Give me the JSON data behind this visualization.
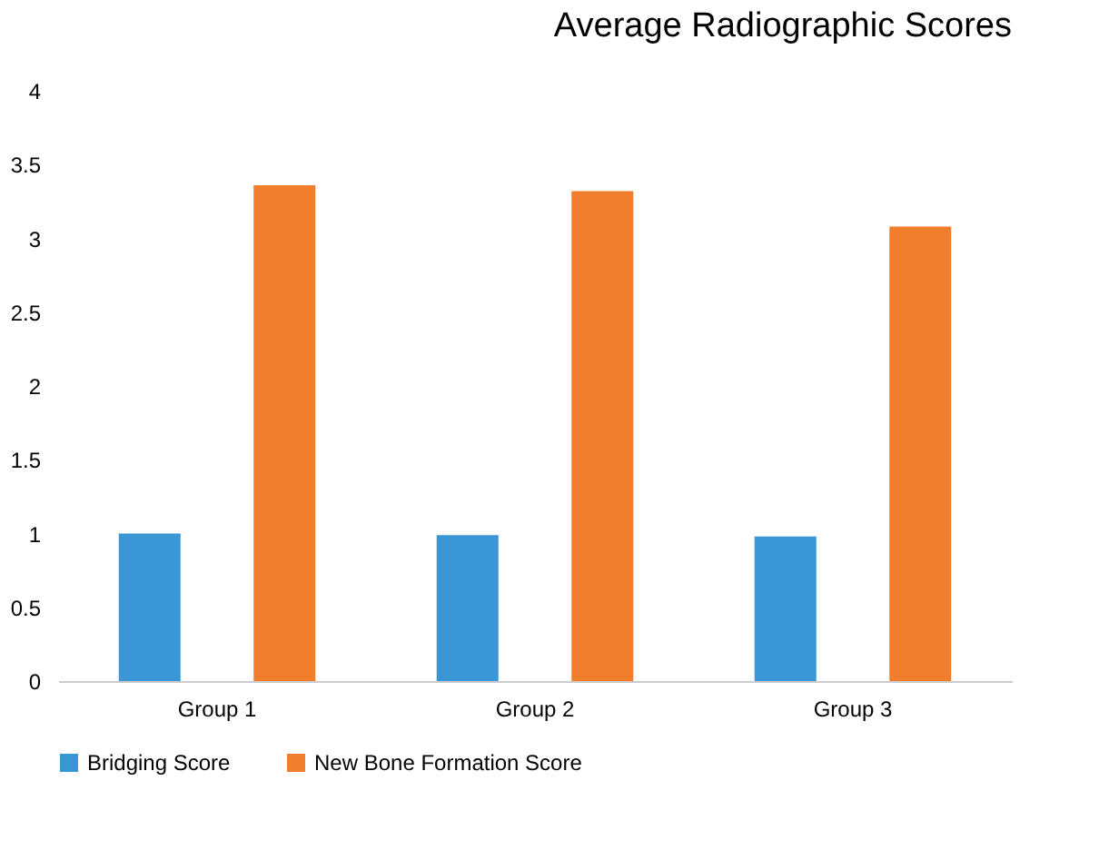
{
  "chart_data": {
    "type": "bar",
    "title": "Average Radiographic  Scores",
    "categories": [
      "Group 1",
      "Group 2",
      "Group 3"
    ],
    "series": [
      {
        "name": "Bridging Score",
        "color": "#3b96d6",
        "values": [
          1.0,
          0.99,
          0.98
        ]
      },
      {
        "name": "New Bone Formation Score",
        "color": "#f07e2c",
        "values": [
          3.36,
          3.32,
          3.08
        ]
      }
    ],
    "ylim": [
      0,
      4
    ],
    "yticks": [
      0,
      0.5,
      1,
      1.5,
      2,
      2.5,
      3,
      3.5,
      4
    ],
    "grid": false,
    "legend": "bottom"
  }
}
